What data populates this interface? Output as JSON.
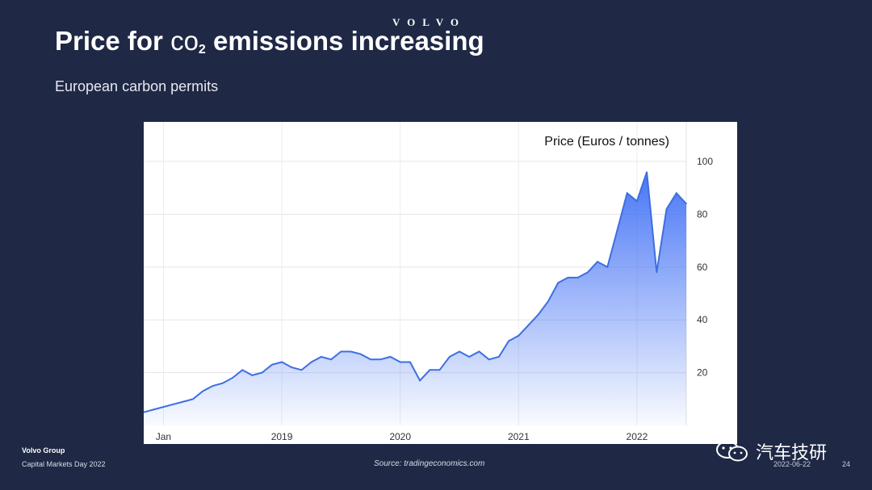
{
  "brand": "VOLVO",
  "title": {
    "prefix": "Price for ",
    "co": "co",
    "sub": "2",
    "suffix": " emissions increasing"
  },
  "subtitle": "European carbon permits",
  "footer": {
    "org": "Volvo Group",
    "event": "Capital Markets Day 2022",
    "source": "Source: tradingeconomics.com",
    "date": "2022-06-22",
    "page": "24"
  },
  "watermark": {
    "text": "汽车技研",
    "icon": "wechat-icon"
  },
  "colors": {
    "background": "#1f2845",
    "line": "#3d6fe0",
    "fill": "#4f7ff7"
  },
  "chart_data": {
    "type": "area",
    "ylabel": "Price (Euros / tonnes)",
    "ylim": [
      0,
      115
    ],
    "yticks": [
      20,
      40,
      60,
      80,
      100
    ],
    "xticks": [
      "Jan",
      "2019",
      "2020",
      "2021",
      "2022"
    ],
    "grid": true,
    "y_axis_position": "right",
    "series": [
      {
        "x": [
          "2017-11",
          "2017-12",
          "2018-01",
          "2018-02",
          "2018-03",
          "2018-04",
          "2018-05",
          "2018-06",
          "2018-07",
          "2018-08",
          "2018-09",
          "2018-10",
          "2018-11",
          "2018-12",
          "2019-01",
          "2019-02",
          "2019-03",
          "2019-04",
          "2019-05",
          "2019-06",
          "2019-07",
          "2019-08",
          "2019-09",
          "2019-10",
          "2019-11",
          "2019-12",
          "2020-01",
          "2020-02",
          "2020-03",
          "2020-04",
          "2020-05",
          "2020-06",
          "2020-07",
          "2020-08",
          "2020-09",
          "2020-10",
          "2020-11",
          "2020-12",
          "2021-01",
          "2021-02",
          "2021-03",
          "2021-04",
          "2021-05",
          "2021-06",
          "2021-07",
          "2021-08",
          "2021-09",
          "2021-10",
          "2021-11",
          "2021-12",
          "2022-01",
          "2022-02",
          "2022-03",
          "2022-04",
          "2022-05",
          "2022-06"
        ],
        "values": [
          5,
          6,
          7,
          8,
          9,
          10,
          13,
          15,
          16,
          18,
          21,
          19,
          20,
          23,
          24,
          22,
          21,
          24,
          26,
          25,
          28,
          28,
          27,
          25,
          25,
          26,
          24,
          24,
          17,
          21,
          21,
          26,
          28,
          26,
          28,
          25,
          26,
          32,
          34,
          38,
          42,
          47,
          54,
          56,
          56,
          58,
          62,
          60,
          74,
          88,
          85,
          96,
          58,
          82,
          88,
          84
        ]
      }
    ]
  }
}
